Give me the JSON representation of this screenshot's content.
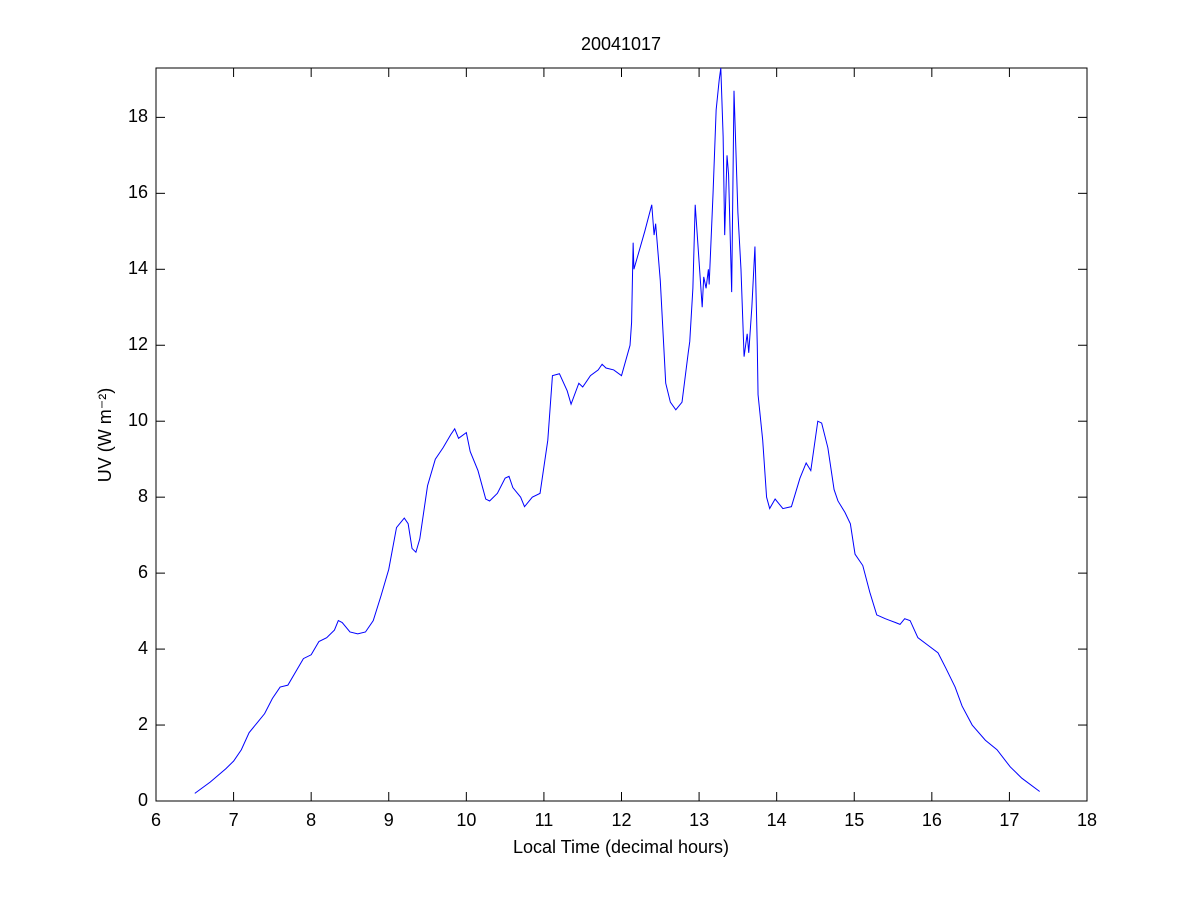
{
  "chart_data": {
    "type": "line",
    "title": "20041017",
    "xlabel": "Local Time (decimal hours)",
    "ylabel": "UV (W m⁻²)",
    "x": [
      6.5,
      6.7,
      6.9,
      7.0,
      7.1,
      7.2,
      7.3,
      7.4,
      7.5,
      7.6,
      7.7,
      7.8,
      7.9,
      8.0,
      8.1,
      8.2,
      8.3,
      8.35,
      8.4,
      8.5,
      8.6,
      8.7,
      8.8,
      8.9,
      9.0,
      9.1,
      9.2,
      9.25,
      9.3,
      9.35,
      9.4,
      9.5,
      9.6,
      9.7,
      9.8,
      9.85,
      9.9,
      10.0,
      10.05,
      10.15,
      10.25,
      10.3,
      10.4,
      10.5,
      10.55,
      10.6,
      10.7,
      10.75,
      10.85,
      10.95,
      11.05,
      11.11,
      11.2,
      11.3,
      11.35,
      11.45,
      11.5,
      11.6,
      11.7,
      11.75,
      11.8,
      11.9,
      12.0,
      12.11,
      12.13,
      12.15,
      12.16,
      12.3,
      12.39,
      12.42,
      12.44,
      12.5,
      12.57,
      12.63,
      12.7,
      12.78,
      12.86,
      12.88,
      12.92,
      12.95,
      13.0,
      13.04,
      13.06,
      13.09,
      13.12,
      13.13,
      13.18,
      13.22,
      13.26,
      13.28,
      13.31,
      13.33,
      13.36,
      13.38,
      13.42,
      13.45,
      13.5,
      13.54,
      13.58,
      13.62,
      13.64,
      13.68,
      13.72,
      13.75,
      13.76,
      13.82,
      13.87,
      13.91,
      13.98,
      14.08,
      14.19,
      14.3,
      14.38,
      14.44,
      14.53,
      14.58,
      14.66,
      14.74,
      14.79,
      14.88,
      14.95,
      15.01,
      15.11,
      15.2,
      15.29,
      15.4,
      15.53,
      15.59,
      15.65,
      15.72,
      15.82,
      15.95,
      16.08,
      16.18,
      16.3,
      16.39,
      16.52,
      16.69,
      16.84,
      17.01,
      17.16,
      17.39
    ],
    "series": [
      {
        "name": "UV",
        "color": "#0000ff",
        "values": [
          0.2,
          0.5,
          0.85,
          1.05,
          1.35,
          1.8,
          2.05,
          2.3,
          2.7,
          3.0,
          3.05,
          3.4,
          3.75,
          3.85,
          4.2,
          4.3,
          4.5,
          4.75,
          4.7,
          4.45,
          4.4,
          4.45,
          4.75,
          5.4,
          6.1,
          7.2,
          7.45,
          7.3,
          6.65,
          6.55,
          6.9,
          8.3,
          9.0,
          9.3,
          9.65,
          9.8,
          9.55,
          9.7,
          9.2,
          8.7,
          7.95,
          7.9,
          8.1,
          8.5,
          8.55,
          8.25,
          8.0,
          7.75,
          8.0,
          8.1,
          9.5,
          11.2,
          11.25,
          10.8,
          10.45,
          11.0,
          10.9,
          11.2,
          11.35,
          11.5,
          11.4,
          11.35,
          11.2,
          12.0,
          12.6,
          14.7,
          14.0,
          15.0,
          15.7,
          14.9,
          15.2,
          13.7,
          11.0,
          10.5,
          10.3,
          10.5,
          11.8,
          12.1,
          13.5,
          15.7,
          14.2,
          13.0,
          13.8,
          13.5,
          14.0,
          13.6,
          16.0,
          18.2,
          19.0,
          19.3,
          17.5,
          14.9,
          17.0,
          16.5,
          13.4,
          18.7,
          15.5,
          14.0,
          11.7,
          12.3,
          11.8,
          13.0,
          14.6,
          12.0,
          10.7,
          9.5,
          8.0,
          7.7,
          7.95,
          7.7,
          7.75,
          8.5,
          8.9,
          8.7,
          10.0,
          9.95,
          9.3,
          8.2,
          7.9,
          7.6,
          7.3,
          6.5,
          6.2,
          5.5,
          4.9,
          4.8,
          4.7,
          4.65,
          4.8,
          4.75,
          4.3,
          4.1,
          3.9,
          3.5,
          3.0,
          2.5,
          2.0,
          1.6,
          1.35,
          0.9,
          0.6,
          0.25
        ]
      }
    ],
    "xlim": [
      6,
      18
    ],
    "xticks": [
      6,
      7,
      8,
      9,
      10,
      11,
      12,
      13,
      14,
      15,
      16,
      17,
      18
    ],
    "ylim": [
      0,
      19.3
    ],
    "yticks": [
      0,
      2,
      4,
      6,
      8,
      10,
      12,
      14,
      16,
      18
    ],
    "grid": false
  }
}
